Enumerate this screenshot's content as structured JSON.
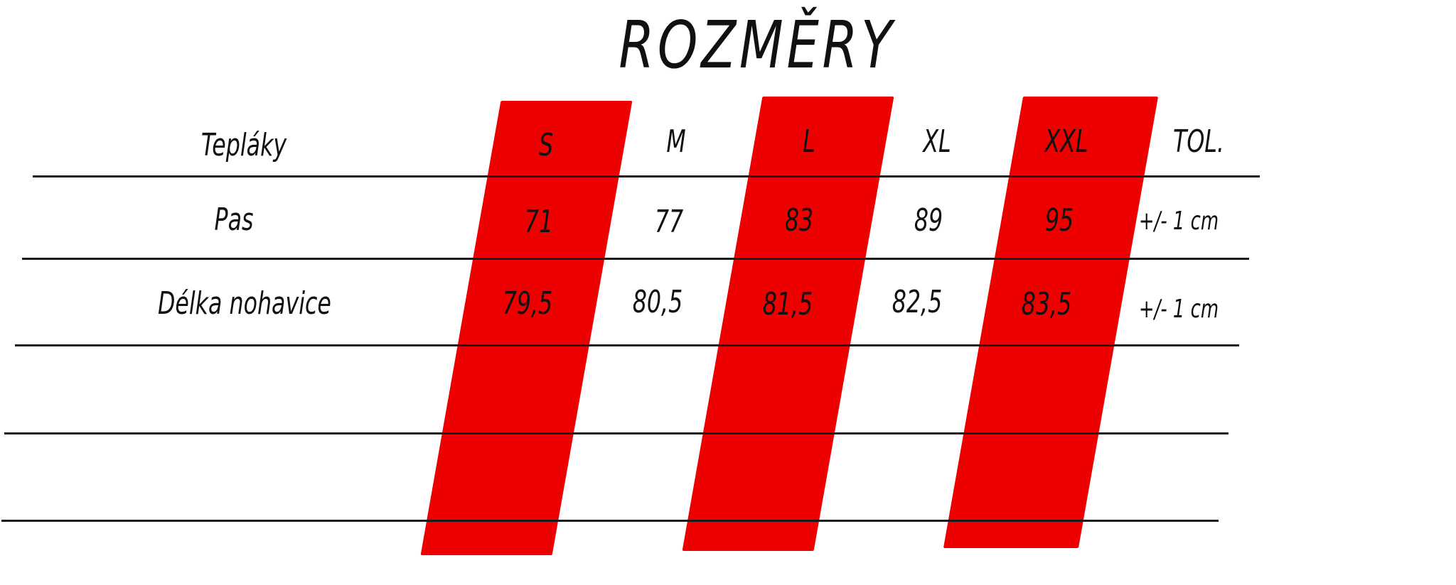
{
  "title": "ROZMĚRY",
  "table": {
    "header": {
      "label": "Tepláky",
      "sizes": [
        "S",
        "M",
        "L",
        "XL",
        "XXL"
      ],
      "tolerance": "TOL."
    },
    "rows": [
      {
        "label": "Pas",
        "values": [
          "71",
          "77",
          "83",
          "89",
          "95"
        ],
        "tolerance": "+/- 1 cm"
      },
      {
        "label": "Délka nohavice",
        "values": [
          "79,5",
          "80,5",
          "81,5",
          "82,5",
          "83,5"
        ],
        "tolerance": "+/- 1 cm"
      }
    ]
  },
  "colors": {
    "highlight": "#ec0000",
    "text": "#111111",
    "rule": "#1a1a1a"
  }
}
